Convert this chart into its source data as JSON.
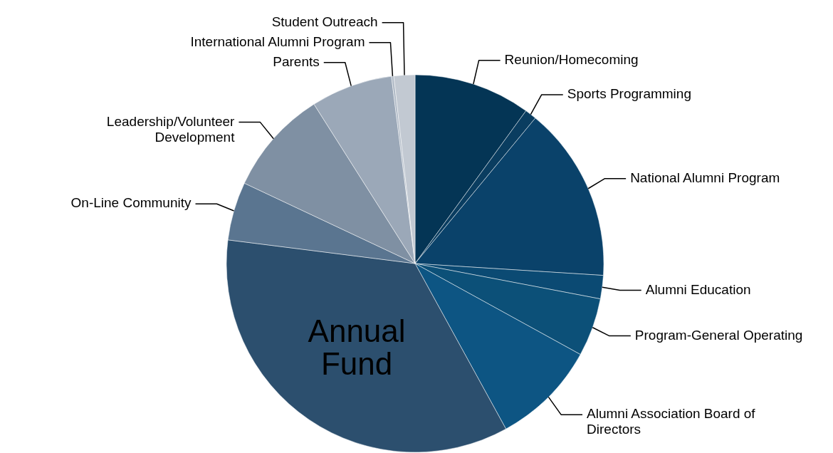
{
  "chart_data": {
    "type": "pie",
    "categories": [
      "Reunion/Homecoming",
      "Sports Programming",
      "National Alumni Program",
      "Alumni Education",
      "Program-General Operating",
      "Alumni Association Board of Directors",
      "Annual Fund",
      "On-Line Community",
      "Leadership/Volunteer Development",
      "Parents",
      "International Alumni Program",
      "Student Outreach"
    ],
    "values": [
      10,
      1,
      15,
      2,
      5,
      9,
      35,
      5,
      9,
      7,
      0.2,
      1.8
    ],
    "colors": [
      "#043555",
      "#0a3d60",
      "#0a426a",
      "#0b4a73",
      "#0c5078",
      "#0d5583",
      "#2c4f6e",
      "#5a7590",
      "#7f90a3",
      "#9ba8b8",
      "#b0bac6",
      "#c2c9d2"
    ]
  }
}
